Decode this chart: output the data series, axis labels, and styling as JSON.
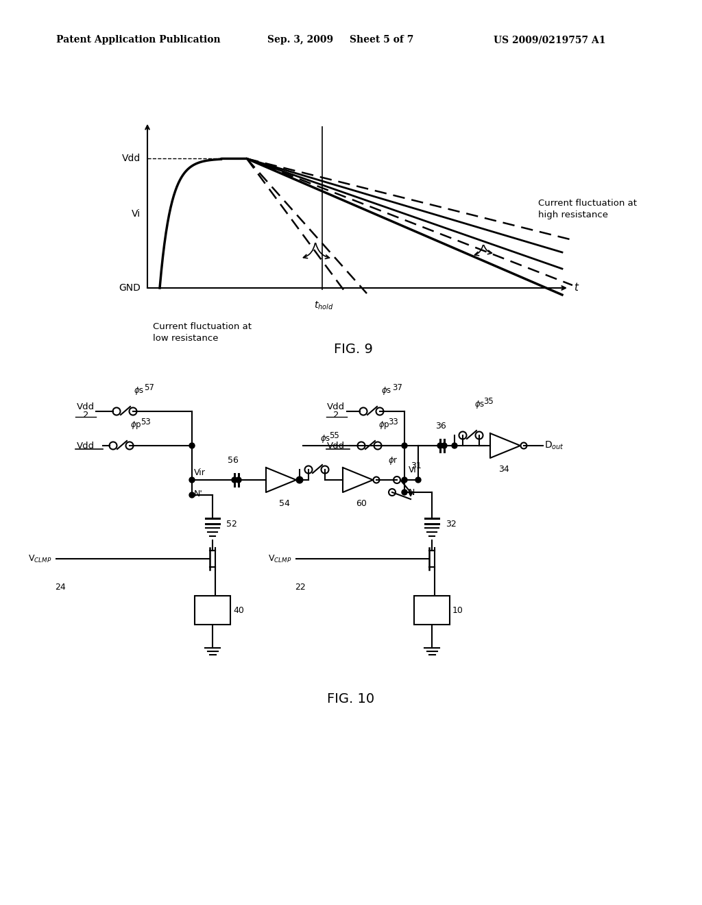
{
  "bg_color": "#ffffff",
  "header_left": "Patent Application Publication",
  "header_center": "Sep. 3, 2009   Sheet 5 of 7",
  "header_right": "US 2009/0219757 A1",
  "fig9_title": "FIG. 9",
  "fig10_title": "FIG. 10"
}
